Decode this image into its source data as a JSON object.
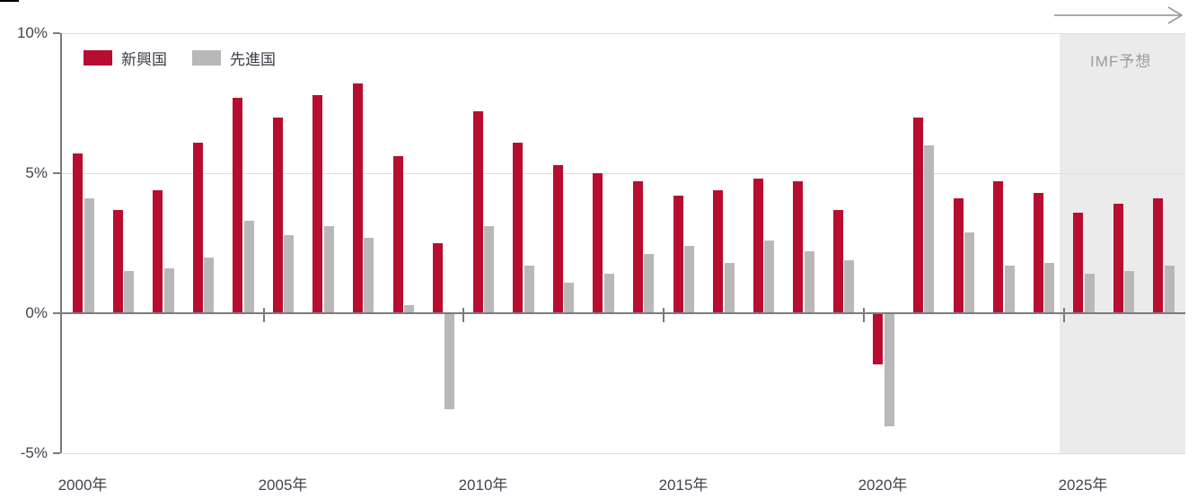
{
  "chart_data": {
    "type": "bar",
    "title": "",
    "categories": [
      2000,
      2001,
      2002,
      2003,
      2004,
      2005,
      2006,
      2007,
      2008,
      2009,
      2010,
      2011,
      2012,
      2013,
      2014,
      2015,
      2016,
      2017,
      2018,
      2019,
      2020,
      2021,
      2022,
      2023,
      2024,
      2025,
      2026,
      2027
    ],
    "series": [
      {
        "name": "新興国",
        "color": "#b70d30",
        "values": [
          5.7,
          3.7,
          4.4,
          6.1,
          7.7,
          7.0,
          7.8,
          8.2,
          5.6,
          2.5,
          7.2,
          6.1,
          5.3,
          5.0,
          4.7,
          4.2,
          4.4,
          4.8,
          4.7,
          3.7,
          -1.8,
          7.0,
          4.1,
          4.7,
          4.3,
          3.6,
          3.9,
          4.1
        ]
      },
      {
        "name": "先進国",
        "color": "#b8b8b8",
        "values": [
          4.1,
          1.5,
          1.6,
          2.0,
          3.3,
          2.8,
          3.1,
          2.7,
          0.3,
          -3.4,
          3.1,
          1.7,
          1.1,
          1.4,
          2.1,
          2.4,
          1.8,
          2.6,
          2.2,
          1.9,
          -4.0,
          6.0,
          2.9,
          1.7,
          1.8,
          1.4,
          1.5,
          1.7
        ]
      }
    ],
    "ylim": [
      -5,
      10
    ],
    "y_tick_values": [
      10,
      5,
      0,
      -5
    ],
    "y_tick_labels": [
      "10%",
      "5%",
      "0%",
      "-5%"
    ],
    "gridline_values": [
      10,
      5,
      -5
    ],
    "x_ticks": [
      {
        "year": 2000,
        "label": "2000年"
      },
      {
        "year": 2005,
        "label": "2005年"
      },
      {
        "year": 2010,
        "label": "2010年"
      },
      {
        "year": 2015,
        "label": "2015年"
      },
      {
        "year": 2020,
        "label": "2020年"
      },
      {
        "year": 2025,
        "label": "2025年"
      }
    ],
    "legend_position": "top-left",
    "grid": "horizontal-light",
    "forecast": {
      "label": "IMF予想",
      "start_year": 2025,
      "end_year": 2027,
      "region_color": "#ebebeb",
      "arrow_icon": "right-arrow"
    }
  },
  "colors": {
    "emerging": "#b70d30",
    "advanced": "#b8b8b8",
    "axis": "#7b7b7b",
    "grid_light": "#dedede",
    "text": "#44444f",
    "forecast_label": "#9b9ba3",
    "forecast_bg": "#ebebeb"
  }
}
